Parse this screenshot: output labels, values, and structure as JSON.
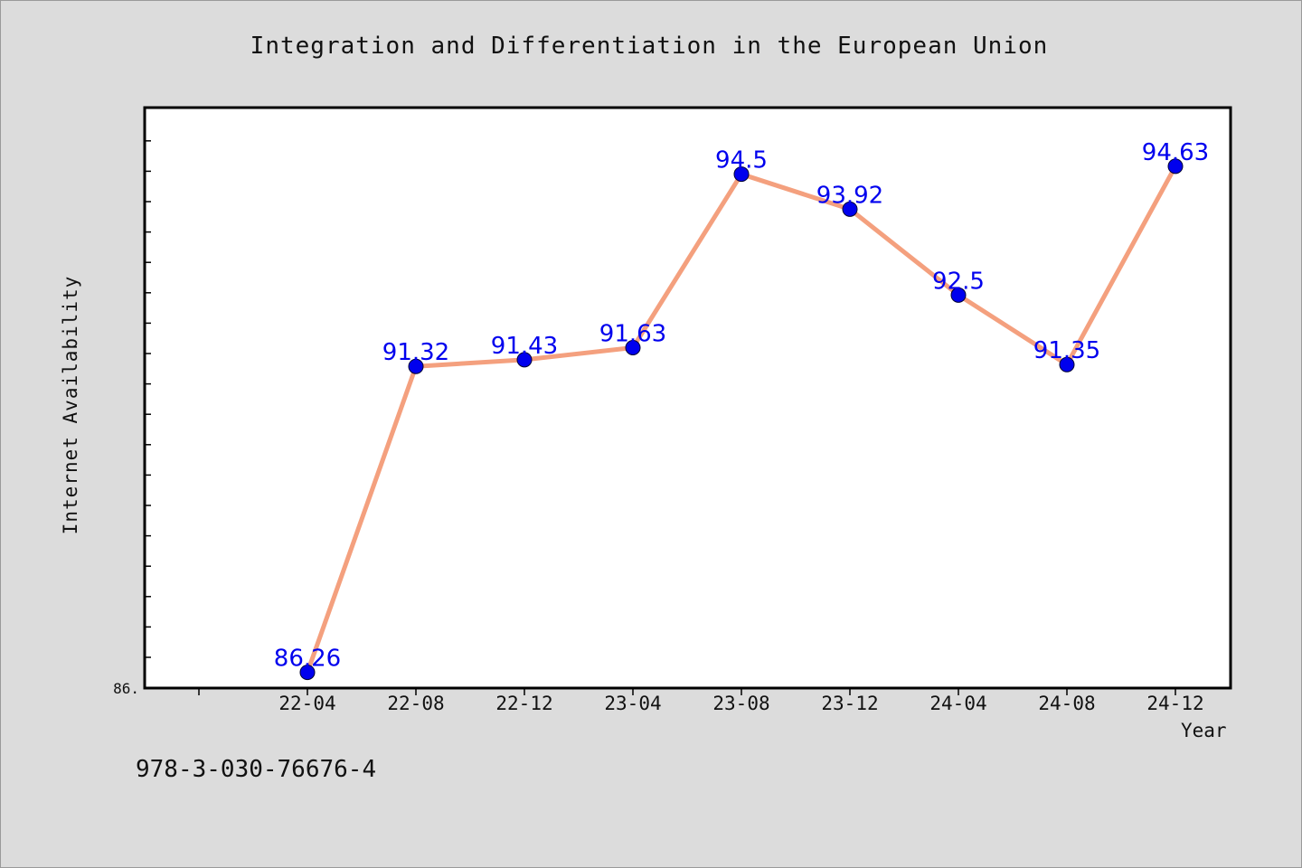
{
  "chart_data": {
    "type": "line",
    "title": "Integration and Differentiation in the European Union",
    "xlabel": "Year",
    "ylabel": "Internet Availability",
    "categories": [
      "22-04",
      "22-08",
      "22-12",
      "23-04",
      "23-08",
      "23-12",
      "24-04",
      "24-08",
      "24-12"
    ],
    "series": [
      {
        "values": [
          86.26,
          91.32,
          91.43,
          91.63,
          94.5,
          93.92,
          92.5,
          91.35,
          94.63
        ],
        "labels": [
          "86.26",
          "91.32",
          "91.43",
          "91.63",
          "94.5",
          "93.92",
          "92.5",
          "91.35",
          "94.63"
        ]
      }
    ],
    "ylim": [
      86.0,
      95.6
    ],
    "y_tick_labels": [
      "86."
    ],
    "grid": false,
    "line_color": "#f4a07e",
    "marker_color": "#0000ee",
    "label_color": "#0000ee"
  },
  "footer_note": "978-3-030-76676-4"
}
